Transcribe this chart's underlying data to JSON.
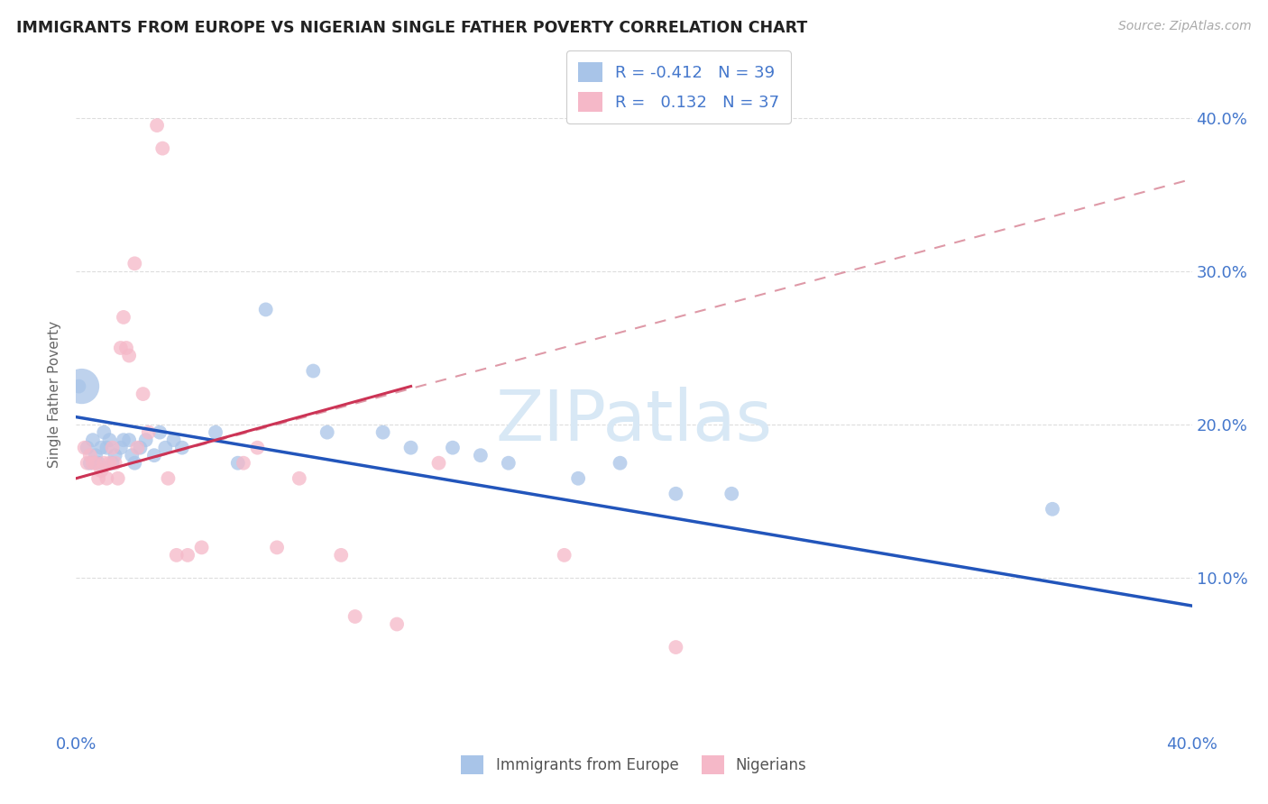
{
  "title": "IMMIGRANTS FROM EUROPE VS NIGERIAN SINGLE FATHER POVERTY CORRELATION CHART",
  "source": "Source: ZipAtlas.com",
  "ylabel": "Single Father Poverty",
  "xlim": [
    0.0,
    0.4
  ],
  "ylim": [
    0.0,
    0.44
  ],
  "legend_label_blue": "Immigrants from Europe",
  "legend_label_pink": "Nigerians",
  "blue_color": "#a8c4e8",
  "pink_color": "#f5b8c8",
  "trendline_blue_color": "#2255bb",
  "trendline_pink_solid_color": "#cc3355",
  "trendline_pink_dashed_color": "#d4778a",
  "watermark_color": "#d8e8f5",
  "blue_trendline": [
    0.0,
    0.205,
    0.4,
    0.082
  ],
  "pink_trendline_solid": [
    0.0,
    0.165,
    0.12,
    0.225
  ],
  "pink_trendline_dashed": [
    0.0,
    0.165,
    0.4,
    0.36
  ],
  "blue_points": [
    [
      0.001,
      0.225
    ],
    [
      0.004,
      0.185
    ],
    [
      0.005,
      0.175
    ],
    [
      0.006,
      0.19
    ],
    [
      0.007,
      0.18
    ],
    [
      0.008,
      0.175
    ],
    [
      0.009,
      0.185
    ],
    [
      0.01,
      0.195
    ],
    [
      0.011,
      0.185
    ],
    [
      0.012,
      0.19
    ],
    [
      0.013,
      0.175
    ],
    [
      0.014,
      0.18
    ],
    [
      0.016,
      0.185
    ],
    [
      0.017,
      0.19
    ],
    [
      0.019,
      0.19
    ],
    [
      0.02,
      0.18
    ],
    [
      0.021,
      0.175
    ],
    [
      0.023,
      0.185
    ],
    [
      0.025,
      0.19
    ],
    [
      0.028,
      0.18
    ],
    [
      0.03,
      0.195
    ],
    [
      0.032,
      0.185
    ],
    [
      0.035,
      0.19
    ],
    [
      0.038,
      0.185
    ],
    [
      0.05,
      0.195
    ],
    [
      0.058,
      0.175
    ],
    [
      0.068,
      0.275
    ],
    [
      0.085,
      0.235
    ],
    [
      0.09,
      0.195
    ],
    [
      0.11,
      0.195
    ],
    [
      0.12,
      0.185
    ],
    [
      0.135,
      0.185
    ],
    [
      0.145,
      0.18
    ],
    [
      0.155,
      0.175
    ],
    [
      0.18,
      0.165
    ],
    [
      0.195,
      0.175
    ],
    [
      0.215,
      0.155
    ],
    [
      0.235,
      0.155
    ],
    [
      0.35,
      0.145
    ]
  ],
  "blue_point_large": [
    0.002,
    0.225
  ],
  "pink_points": [
    [
      0.003,
      0.185
    ],
    [
      0.004,
      0.175
    ],
    [
      0.005,
      0.18
    ],
    [
      0.006,
      0.175
    ],
    [
      0.007,
      0.175
    ],
    [
      0.008,
      0.165
    ],
    [
      0.009,
      0.17
    ],
    [
      0.01,
      0.175
    ],
    [
      0.011,
      0.165
    ],
    [
      0.012,
      0.175
    ],
    [
      0.013,
      0.185
    ],
    [
      0.014,
      0.175
    ],
    [
      0.015,
      0.165
    ],
    [
      0.016,
      0.25
    ],
    [
      0.017,
      0.27
    ],
    [
      0.018,
      0.25
    ],
    [
      0.019,
      0.245
    ],
    [
      0.021,
      0.305
    ],
    [
      0.022,
      0.185
    ],
    [
      0.024,
      0.22
    ],
    [
      0.026,
      0.195
    ],
    [
      0.029,
      0.395
    ],
    [
      0.031,
      0.38
    ],
    [
      0.033,
      0.165
    ],
    [
      0.036,
      0.115
    ],
    [
      0.04,
      0.115
    ],
    [
      0.045,
      0.12
    ],
    [
      0.06,
      0.175
    ],
    [
      0.065,
      0.185
    ],
    [
      0.072,
      0.12
    ],
    [
      0.08,
      0.165
    ],
    [
      0.095,
      0.115
    ],
    [
      0.1,
      0.075
    ],
    [
      0.115,
      0.07
    ],
    [
      0.13,
      0.175
    ],
    [
      0.175,
      0.115
    ],
    [
      0.215,
      0.055
    ]
  ]
}
